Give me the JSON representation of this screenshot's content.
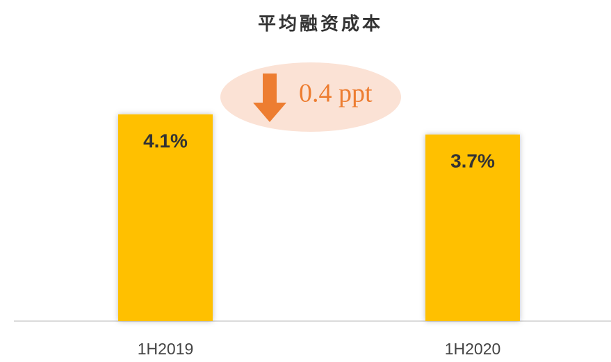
{
  "chart_data": {
    "type": "bar",
    "title": "平均融资成本",
    "categories": [
      "1H2019",
      "1H2020"
    ],
    "values": [
      4.1,
      3.7
    ],
    "value_labels": [
      "4.1%",
      "3.7%"
    ],
    "color": "#ffc000",
    "ylim": [
      0,
      5
    ],
    "annotation": "0.4 ppt"
  }
}
